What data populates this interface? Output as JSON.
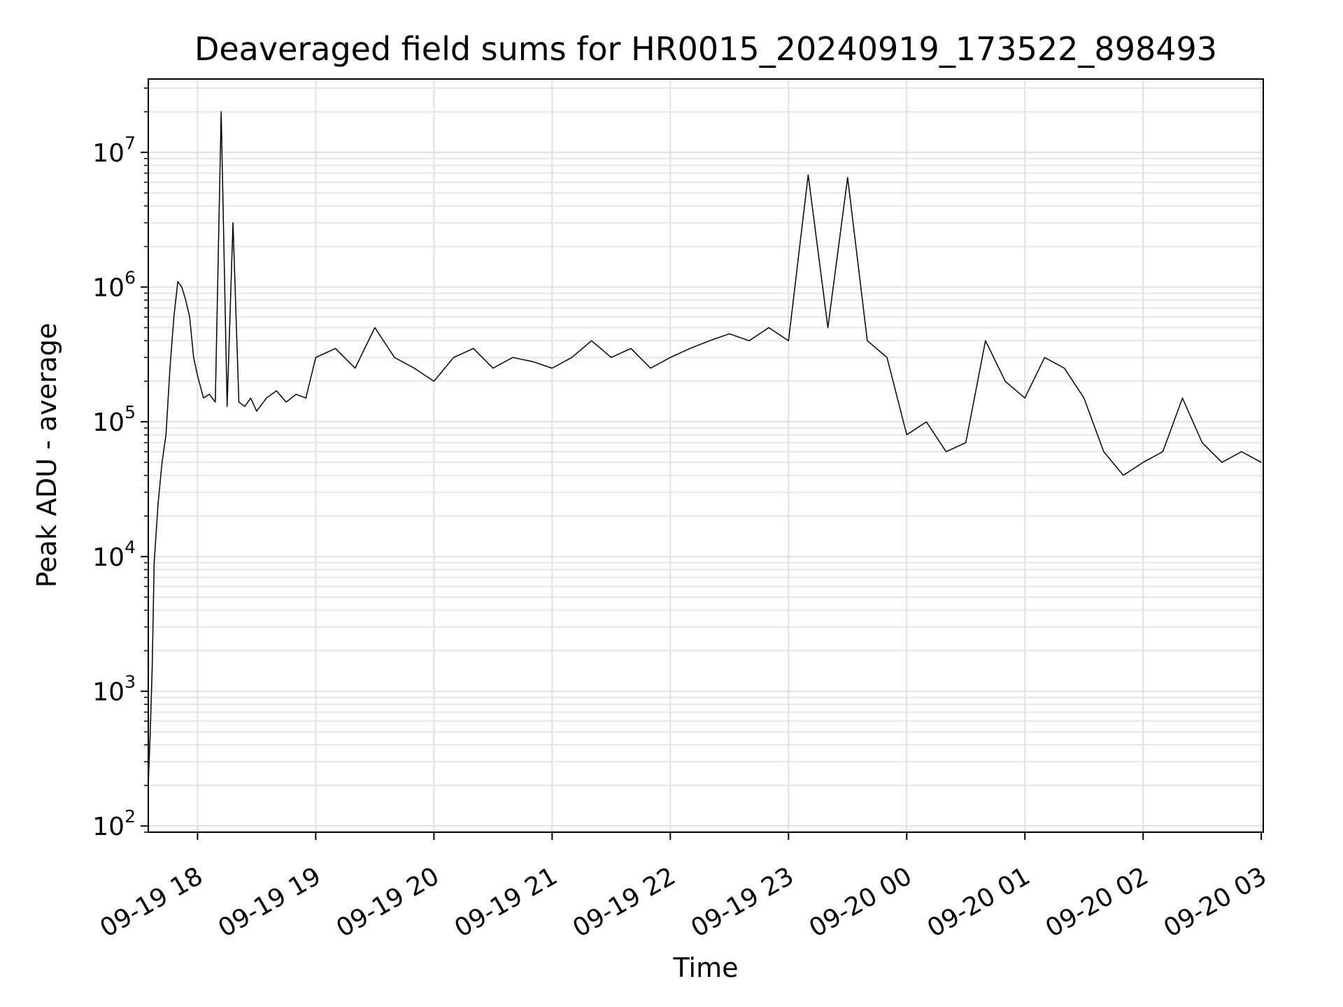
{
  "chart_data": {
    "type": "line",
    "title": "Deaveraged field sums for HR0015_20240919_173522_898493",
    "xlabel": "Time",
    "ylabel": "Peak ADU - average",
    "yscale": "log",
    "xlim": [
      "2024-09-19 17:35",
      "2024-09-20 03:01"
    ],
    "ylim": [
      90,
      35000000
    ],
    "grid": true,
    "line_color": "#000000",
    "x_ticks": [
      "09-19 18",
      "09-19 19",
      "09-19 20",
      "09-19 21",
      "09-19 22",
      "09-19 23",
      "09-20 00",
      "09-20 01",
      "09-20 02",
      "09-20 03"
    ],
    "y_ticks": [
      {
        "base": "10",
        "exp": "2"
      },
      {
        "base": "10",
        "exp": "3"
      },
      {
        "base": "10",
        "exp": "4"
      },
      {
        "base": "10",
        "exp": "5"
      },
      {
        "base": "10",
        "exp": "6"
      },
      {
        "base": "10",
        "exp": "7"
      }
    ],
    "series": [
      {
        "x": [
          "2024-09-19 17:35",
          "2024-09-19 17:36",
          "2024-09-19 17:37",
          "2024-09-19 17:38",
          "2024-09-19 17:40",
          "2024-09-19 17:42",
          "2024-09-19 17:44",
          "2024-09-19 17:46",
          "2024-09-19 17:48",
          "2024-09-19 17:50",
          "2024-09-19 17:52",
          "2024-09-19 17:54",
          "2024-09-19 17:56",
          "2024-09-19 17:58",
          "2024-09-19 18:00",
          "2024-09-19 18:03",
          "2024-09-19 18:06",
          "2024-09-19 18:09",
          "2024-09-19 18:12",
          "2024-09-19 18:15",
          "2024-09-19 18:18",
          "2024-09-19 18:21",
          "2024-09-19 18:24",
          "2024-09-19 18:27",
          "2024-09-19 18:30",
          "2024-09-19 18:35",
          "2024-09-19 18:40",
          "2024-09-19 18:45",
          "2024-09-19 18:50",
          "2024-09-19 18:55",
          "2024-09-19 19:00",
          "2024-09-19 19:10",
          "2024-09-19 19:20",
          "2024-09-19 19:30",
          "2024-09-19 19:40",
          "2024-09-19 19:50",
          "2024-09-19 20:00",
          "2024-09-19 20:10",
          "2024-09-19 20:20",
          "2024-09-19 20:30",
          "2024-09-19 20:40",
          "2024-09-19 20:50",
          "2024-09-19 21:00",
          "2024-09-19 21:10",
          "2024-09-19 21:20",
          "2024-09-19 21:30",
          "2024-09-19 21:40",
          "2024-09-19 21:50",
          "2024-09-19 22:00",
          "2024-09-19 22:10",
          "2024-09-19 22:20",
          "2024-09-19 22:30",
          "2024-09-19 22:40",
          "2024-09-19 22:50",
          "2024-09-19 23:00",
          "2024-09-19 23:10",
          "2024-09-19 23:20",
          "2024-09-19 23:30",
          "2024-09-19 23:40",
          "2024-09-19 23:50",
          "2024-09-20 00:00",
          "2024-09-20 00:10",
          "2024-09-20 00:20",
          "2024-09-20 00:30",
          "2024-09-20 00:40",
          "2024-09-20 00:50",
          "2024-09-20 01:00",
          "2024-09-20 01:10",
          "2024-09-20 01:20",
          "2024-09-20 01:30",
          "2024-09-20 01:40",
          "2024-09-20 01:50",
          "2024-09-20 02:00",
          "2024-09-20 02:10",
          "2024-09-20 02:20",
          "2024-09-20 02:30",
          "2024-09-20 02:40",
          "2024-09-20 02:50",
          "2024-09-20 03:00"
        ],
        "y": [
          200,
          500,
          1500,
          9000,
          25000,
          50000,
          80000,
          250000,
          600000,
          1100000,
          1000000,
          800000,
          600000,
          300000,
          220000,
          150000,
          160000,
          140000,
          20000000,
          130000,
          3000000,
          140000,
          130000,
          150000,
          120000,
          150000,
          170000,
          140000,
          160000,
          150000,
          300000,
          350000,
          250000,
          500000,
          300000,
          250000,
          200000,
          300000,
          350000,
          250000,
          300000,
          280000,
          250000,
          300000,
          400000,
          300000,
          350000,
          250000,
          300000,
          350000,
          400000,
          450000,
          400000,
          500000,
          400000,
          6800000,
          500000,
          6500000,
          400000,
          300000,
          80000,
          100000,
          60000,
          70000,
          400000,
          200000,
          150000,
          300000,
          250000,
          150000,
          60000,
          40000,
          50000,
          60000,
          150000,
          70000,
          50000,
          60000,
          50000
        ]
      }
    ]
  }
}
